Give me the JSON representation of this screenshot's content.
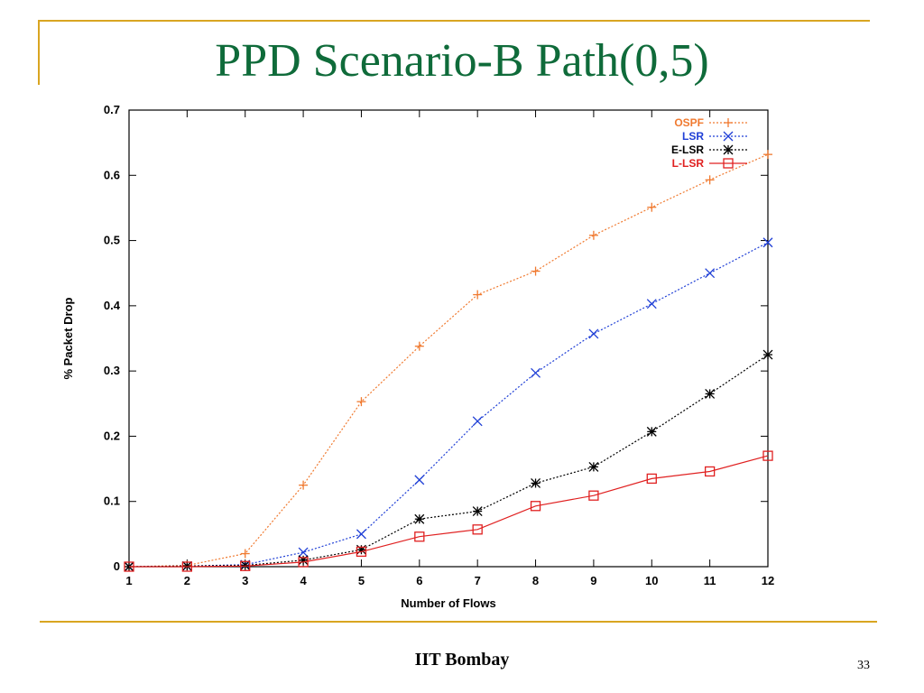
{
  "slide": {
    "title": "PPD Scenario-B Path(0,5)",
    "footer": "IIT Bombay",
    "page_number": "33",
    "accent_color": "#d9a521",
    "title_color": "#0f6b3a"
  },
  "chart_data": {
    "type": "line",
    "title": "",
    "xlabel": "Number of Flows",
    "ylabel": "% Packet Drop",
    "x": [
      1,
      2,
      3,
      4,
      5,
      6,
      7,
      8,
      9,
      10,
      11,
      12
    ],
    "xlim": [
      1,
      12
    ],
    "ylim": [
      0,
      0.7
    ],
    "yticks": [
      "0",
      "0.1",
      "0.2",
      "0.3",
      "0.4",
      "0.5",
      "0.6",
      "0.7"
    ],
    "xticks": [
      "1",
      "2",
      "3",
      "4",
      "5",
      "6",
      "7",
      "8",
      "9",
      "10",
      "11",
      "12"
    ],
    "grid": false,
    "legend_position": "top-right",
    "series": [
      {
        "name": "OSPF",
        "color": "#f07a30",
        "marker": "plus",
        "dash": "dotted",
        "values": [
          0,
          0.002,
          0.02,
          0.125,
          0.253,
          0.338,
          0.417,
          0.453,
          0.508,
          0.551,
          0.593,
          0.632
        ]
      },
      {
        "name": "LSR",
        "color": "#1f3fd6",
        "marker": "cross",
        "dash": "dotted",
        "values": [
          0,
          0.001,
          0.003,
          0.022,
          0.05,
          0.133,
          0.223,
          0.297,
          0.357,
          0.403,
          0.45,
          0.497
        ]
      },
      {
        "name": "E-LSR",
        "color": "#000000",
        "marker": "star",
        "dash": "dotted",
        "values": [
          0,
          0.001,
          0.002,
          0.01,
          0.026,
          0.073,
          0.085,
          0.128,
          0.153,
          0.207,
          0.265,
          0.325
        ]
      },
      {
        "name": "L-LSR",
        "color": "#e02020",
        "marker": "square",
        "dash": "solid",
        "values": [
          0,
          0,
          0.001,
          0.007,
          0.023,
          0.046,
          0.057,
          0.093,
          0.109,
          0.135,
          0.146,
          0.17
        ]
      }
    ]
  }
}
